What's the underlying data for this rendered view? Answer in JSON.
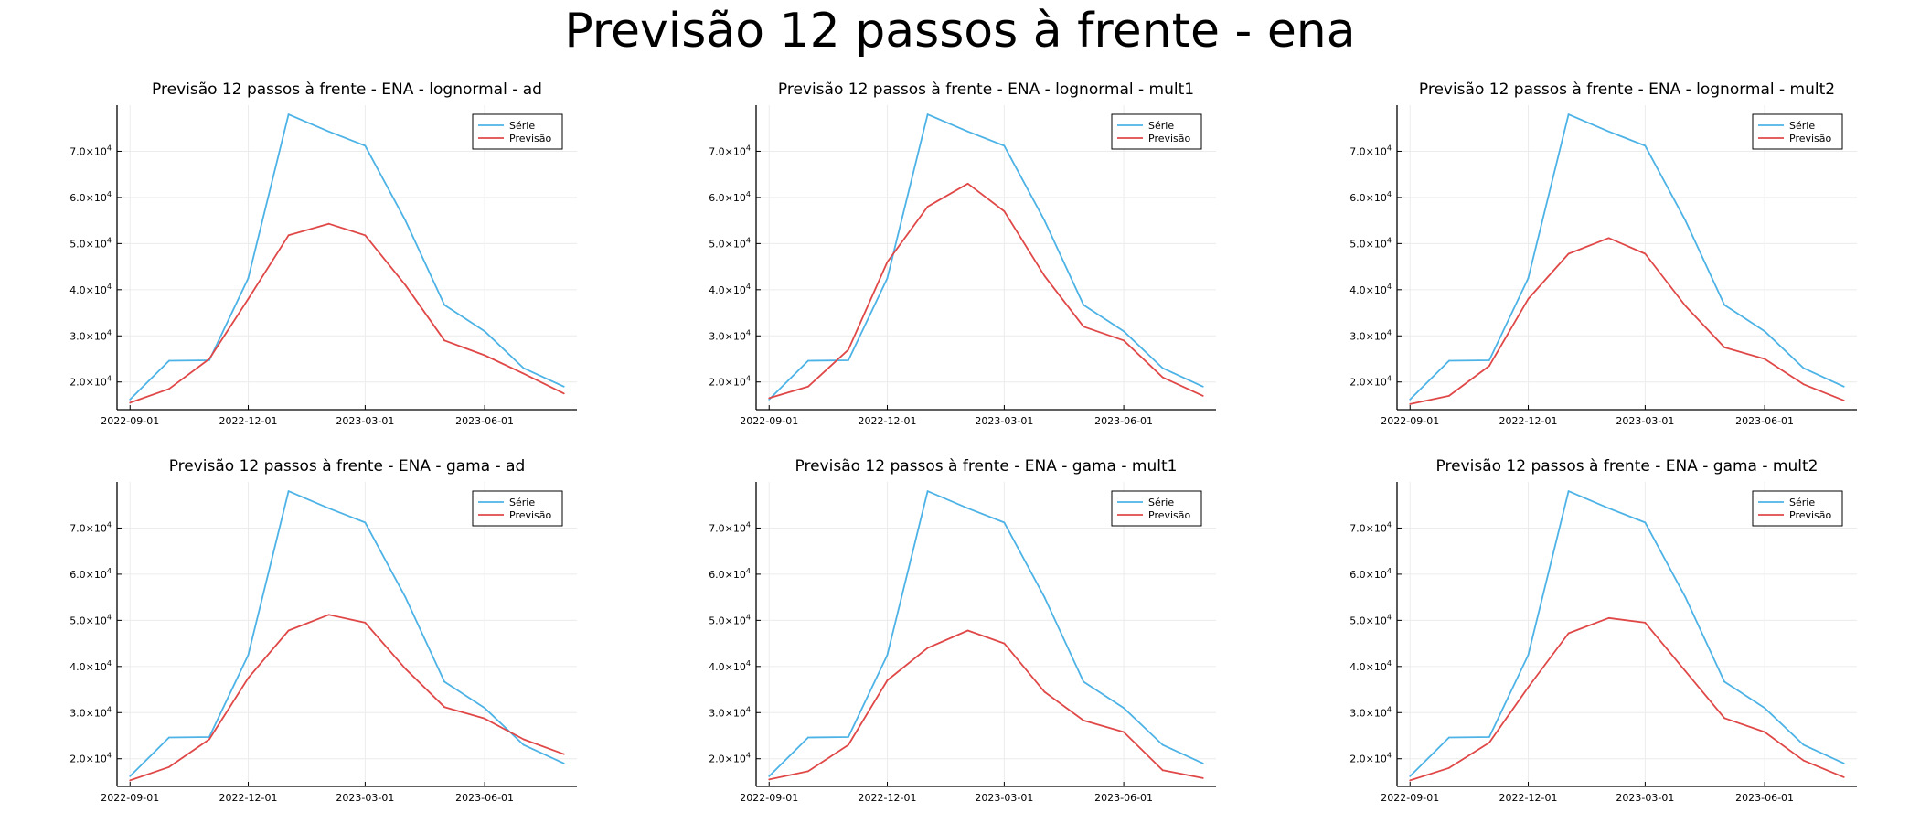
{
  "suptitle": "Previsão 12 passos à frente - ena",
  "colors": {
    "serie": "#4db3e6",
    "previsao": "#e04848",
    "grid": "#ececec",
    "axis": "#000000"
  },
  "chart_data": [
    {
      "type": "line",
      "title": "Previsão 12 passos à frente - ENA - lognormal - ad",
      "x": [
        "2022-09-01",
        "2022-10-01",
        "2022-11-01",
        "2022-12-01",
        "2023-01-01",
        "2023-02-01",
        "2023-03-01",
        "2023-04-01",
        "2023-05-01",
        "2023-06-01",
        "2023-07-01",
        "2023-08-01"
      ],
      "xticks": [
        "2022-09-01",
        "2022-12-01",
        "2023-03-01",
        "2023-06-01"
      ],
      "ylim": [
        14000,
        80000
      ],
      "yticks": [
        20000,
        30000,
        40000,
        50000,
        60000,
        70000
      ],
      "ytick_labels": [
        {
          "m": "2.0",
          "e": "4"
        },
        {
          "m": "3.0",
          "e": "4"
        },
        {
          "m": "4.0",
          "e": "4"
        },
        {
          "m": "5.0",
          "e": "4"
        },
        {
          "m": "6.0",
          "e": "4"
        },
        {
          "m": "7.0",
          "e": "4"
        }
      ],
      "legend_position": "top-right",
      "grid": true,
      "series": [
        {
          "name": "Série",
          "values": [
            16200,
            24600,
            24700,
            42500,
            78000,
            74300,
            71200,
            55000,
            36700,
            31000,
            23000,
            19000
          ]
        },
        {
          "name": "Previsão",
          "values": [
            15500,
            18500,
            25000,
            38000,
            51800,
            54300,
            51800,
            41000,
            29000,
            25800,
            21800,
            17500
          ]
        }
      ]
    },
    {
      "type": "line",
      "title": "Previsão 12 passos à frente - ENA - lognormal - mult1",
      "x": [
        "2022-09-01",
        "2022-10-01",
        "2022-11-01",
        "2022-12-01",
        "2023-01-01",
        "2023-02-01",
        "2023-03-01",
        "2023-04-01",
        "2023-05-01",
        "2023-06-01",
        "2023-07-01",
        "2023-08-01"
      ],
      "xticks": [
        "2022-09-01",
        "2022-12-01",
        "2023-03-01",
        "2023-06-01"
      ],
      "ylim": [
        14000,
        80000
      ],
      "yticks": [
        20000,
        30000,
        40000,
        50000,
        60000,
        70000
      ],
      "ytick_labels": [
        {
          "m": "2.0",
          "e": "4"
        },
        {
          "m": "3.0",
          "e": "4"
        },
        {
          "m": "4.0",
          "e": "4"
        },
        {
          "m": "5.0",
          "e": "4"
        },
        {
          "m": "6.0",
          "e": "4"
        },
        {
          "m": "7.0",
          "e": "4"
        }
      ],
      "legend_position": "top-right",
      "grid": true,
      "series": [
        {
          "name": "Série",
          "values": [
            16200,
            24600,
            24700,
            42500,
            78000,
            74300,
            71200,
            55000,
            36700,
            31000,
            23000,
            19000
          ]
        },
        {
          "name": "Previsão",
          "values": [
            16500,
            19000,
            27000,
            46000,
            58000,
            63000,
            57000,
            43000,
            32000,
            29000,
            21000,
            17000
          ]
        }
      ]
    },
    {
      "type": "line",
      "title": "Previsão 12 passos à frente - ENA - lognormal - mult2",
      "x": [
        "2022-09-01",
        "2022-10-01",
        "2022-11-01",
        "2022-12-01",
        "2023-01-01",
        "2023-02-01",
        "2023-03-01",
        "2023-04-01",
        "2023-05-01",
        "2023-06-01",
        "2023-07-01",
        "2023-08-01"
      ],
      "xticks": [
        "2022-09-01",
        "2022-12-01",
        "2023-03-01",
        "2023-06-01"
      ],
      "ylim": [
        14000,
        80000
      ],
      "yticks": [
        20000,
        30000,
        40000,
        50000,
        60000,
        70000
      ],
      "ytick_labels": [
        {
          "m": "2.0",
          "e": "4"
        },
        {
          "m": "3.0",
          "e": "4"
        },
        {
          "m": "4.0",
          "e": "4"
        },
        {
          "m": "5.0",
          "e": "4"
        },
        {
          "m": "6.0",
          "e": "4"
        },
        {
          "m": "7.0",
          "e": "4"
        }
      ],
      "legend_position": "top-right",
      "grid": true,
      "series": [
        {
          "name": "Série",
          "values": [
            16200,
            24600,
            24700,
            42500,
            78000,
            74300,
            71200,
            55000,
            36700,
            31000,
            23000,
            19000
          ]
        },
        {
          "name": "Previsão",
          "values": [
            15200,
            17000,
            23500,
            38000,
            47800,
            51200,
            47800,
            36500,
            27500,
            25000,
            19500,
            16000
          ]
        }
      ]
    },
    {
      "type": "line",
      "title": "Previsão 12 passos à frente - ENA - gama - ad",
      "x": [
        "2022-09-01",
        "2022-10-01",
        "2022-11-01",
        "2022-12-01",
        "2023-01-01",
        "2023-02-01",
        "2023-03-01",
        "2023-04-01",
        "2023-05-01",
        "2023-06-01",
        "2023-07-01",
        "2023-08-01"
      ],
      "xticks": [
        "2022-09-01",
        "2022-12-01",
        "2023-03-01",
        "2023-06-01"
      ],
      "ylim": [
        14000,
        80000
      ],
      "yticks": [
        20000,
        30000,
        40000,
        50000,
        60000,
        70000
      ],
      "ytick_labels": [
        {
          "m": "2.0",
          "e": "4"
        },
        {
          "m": "3.0",
          "e": "4"
        },
        {
          "m": "4.0",
          "e": "4"
        },
        {
          "m": "5.0",
          "e": "4"
        },
        {
          "m": "6.0",
          "e": "4"
        },
        {
          "m": "7.0",
          "e": "4"
        }
      ],
      "legend_position": "top-right",
      "grid": true,
      "series": [
        {
          "name": "Série",
          "values": [
            16200,
            24600,
            24700,
            42500,
            78000,
            74300,
            71200,
            55000,
            36700,
            31000,
            23000,
            19000
          ]
        },
        {
          "name": "Previsão",
          "values": [
            15300,
            18200,
            24200,
            37500,
            47800,
            51200,
            49500,
            39500,
            31200,
            28700,
            24200,
            21000
          ]
        }
      ]
    },
    {
      "type": "line",
      "title": "Previsão 12 passos à frente - ENA - gama - mult1",
      "x": [
        "2022-09-01",
        "2022-10-01",
        "2022-11-01",
        "2022-12-01",
        "2023-01-01",
        "2023-02-01",
        "2023-03-01",
        "2023-04-01",
        "2023-05-01",
        "2023-06-01",
        "2023-07-01",
        "2023-08-01"
      ],
      "xticks": [
        "2022-09-01",
        "2022-12-01",
        "2023-03-01",
        "2023-06-01"
      ],
      "ylim": [
        14000,
        80000
      ],
      "yticks": [
        20000,
        30000,
        40000,
        50000,
        60000,
        70000
      ],
      "ytick_labels": [
        {
          "m": "2.0",
          "e": "4"
        },
        {
          "m": "3.0",
          "e": "4"
        },
        {
          "m": "4.0",
          "e": "4"
        },
        {
          "m": "5.0",
          "e": "4"
        },
        {
          "m": "6.0",
          "e": "4"
        },
        {
          "m": "7.0",
          "e": "4"
        }
      ],
      "legend_position": "top-right",
      "grid": true,
      "series": [
        {
          "name": "Série",
          "values": [
            16200,
            24600,
            24700,
            42500,
            78000,
            74300,
            71200,
            55000,
            36700,
            31000,
            23000,
            19000
          ]
        },
        {
          "name": "Previsão",
          "values": [
            15500,
            17300,
            23000,
            37000,
            44000,
            47800,
            45000,
            34500,
            28300,
            25800,
            17500,
            15800
          ]
        }
      ]
    },
    {
      "type": "line",
      "title": "Previsão 12 passos à frente - ENA - gama - mult2",
      "x": [
        "2022-09-01",
        "2022-10-01",
        "2022-11-01",
        "2022-12-01",
        "2023-01-01",
        "2023-02-01",
        "2023-03-01",
        "2023-04-01",
        "2023-05-01",
        "2023-06-01",
        "2023-07-01",
        "2023-08-01"
      ],
      "xticks": [
        "2022-09-01",
        "2022-12-01",
        "2023-03-01",
        "2023-06-01"
      ],
      "ylim": [
        14000,
        80000
      ],
      "yticks": [
        20000,
        30000,
        40000,
        50000,
        60000,
        70000
      ],
      "ytick_labels": [
        {
          "m": "2.0",
          "e": "4"
        },
        {
          "m": "3.0",
          "e": "4"
        },
        {
          "m": "4.0",
          "e": "4"
        },
        {
          "m": "5.0",
          "e": "4"
        },
        {
          "m": "6.0",
          "e": "4"
        },
        {
          "m": "7.0",
          "e": "4"
        }
      ],
      "legend_position": "top-right",
      "grid": true,
      "series": [
        {
          "name": "Série",
          "values": [
            16200,
            24600,
            24700,
            42500,
            78000,
            74300,
            71200,
            55000,
            36700,
            31000,
            23000,
            19000
          ]
        },
        {
          "name": "Previsão",
          "values": [
            15300,
            18000,
            23500,
            35500,
            47200,
            50500,
            49500,
            39000,
            28800,
            25800,
            19600,
            16000
          ]
        }
      ]
    }
  ]
}
